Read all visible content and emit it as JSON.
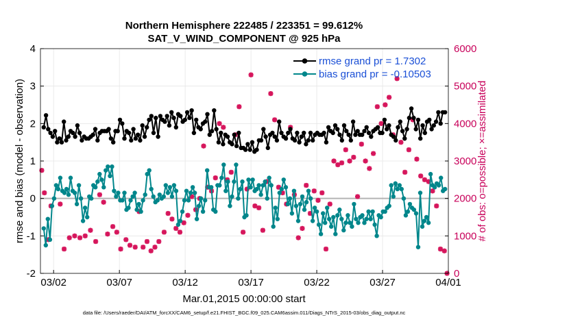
{
  "chart_data": {
    "type": "line",
    "title_line1": "Northern Hemisphere 222485 / 223351 = 99.612%",
    "title_line2": "SAT_V_WIND_COMPONENT @ 925 hPa",
    "ylabel_left": "rmse and bias (model - observation)",
    "ylabel_right": "# of obs: o=possible; ×=assimilated",
    "xlabel": "Mar.01,2015 00:00:00 start",
    "footer": "data file: /Users/raeder/DAI/ATM_forcXX/CAM6_setup/f.e21.FHIST_BGC.f09_025.CAM6assim.011/Diags_NTrS_2015-03/obs_diag_output.nc",
    "ylim_left": [
      -2,
      4
    ],
    "ylim_right": [
      0,
      6000
    ],
    "xlim_days": [
      0,
      31
    ],
    "y_ticks_left": [
      "-2",
      "-1",
      "0",
      "1",
      "2",
      "3",
      "4"
    ],
    "y_ticks_right": [
      "0",
      "1000",
      "2000",
      "3000",
      "4000",
      "5000",
      "6000"
    ],
    "x_tick_days": [
      1,
      6,
      11,
      16,
      21,
      26,
      31
    ],
    "x_tick_labels": [
      "03/02",
      "03/07",
      "03/12",
      "03/17",
      "03/22",
      "03/27",
      "04/01"
    ],
    "colors": {
      "rmse": "#000000",
      "bias": "#00868b",
      "obs": "#d6165c",
      "zero": "#b3b3b3",
      "legend_text": "#1a4fd6",
      "right_axis": "#c8005a"
    },
    "series": [
      {
        "name": "rmse grand pr = 1.7302",
        "values": [
          1.9,
          2.22,
          1.85,
          1.75,
          1.65,
          1.8,
          1.5,
          1.6,
          1.5,
          2.05,
          1.55,
          1.65,
          1.8,
          1.75,
          1.65,
          1.95,
          1.75,
          1.55,
          1.65,
          1.6,
          1.6,
          1.65,
          1.7,
          1.85,
          1.55,
          1.75,
          1.8,
          1.8,
          1.8,
          1.85,
          1.6,
          1.5,
          1.8,
          1.8,
          2.1,
          2.0,
          1.6,
          1.8,
          1.75,
          1.55,
          1.85,
          1.6,
          1.7,
          1.55,
          1.95,
          1.65,
          1.9,
          2.1,
          2.2,
          1.75,
          2.15,
          1.65,
          2.2,
          2.1,
          2.05,
          2.2,
          1.95,
          2.3,
          2.15,
          1.9,
          2.25,
          2.2,
          2.05,
          2.1,
          2.3,
          2.15,
          2.35,
          1.75,
          2.1,
          1.9,
          1.85,
          2.0,
          2.05,
          2.25,
          1.7,
          1.8,
          2.35,
          1.85,
          1.5,
          1.75,
          1.45,
          1.7,
          1.65,
          1.5,
          1.45,
          1.7,
          1.4,
          1.75,
          1.35,
          1.35,
          1.3,
          1.45,
          1.3,
          1.5,
          1.25,
          1.3,
          1.55,
          1.55,
          1.85,
          1.65,
          1.35,
          1.7,
          1.75,
          1.65,
          1.55,
          2.05,
          1.75,
          1.65,
          1.6,
          1.75,
          1.85,
          1.6,
          1.55,
          1.75,
          1.5,
          1.65,
          1.75,
          1.45,
          1.55,
          1.75,
          1.55,
          1.7,
          1.75,
          1.7,
          1.7,
          1.75,
          1.5,
          1.9,
          1.8,
          1.75,
          1.95,
          1.85,
          1.7,
          1.55,
          1.95,
          1.8,
          1.7,
          1.55,
          2.05,
          1.7,
          1.8,
          1.7,
          1.7,
          1.8,
          1.9,
          1.75,
          1.65,
          1.8,
          1.85,
          1.9,
          1.75,
          1.75,
          2.1,
          1.85,
          1.95,
          1.7,
          1.65,
          1.55,
          1.9,
          2.05,
          1.8,
          1.6,
          1.85,
          2.15,
          2.4,
          2.15,
          1.85,
          2.1,
          1.6,
          1.95,
          1.75,
          2.05,
          2.1,
          1.85,
          1.95,
          2.05,
          2.3,
          2.0,
          2.3,
          2.3
        ]
      },
      {
        "name": "bias grand pr = -0.10503",
        "values": [
          -0.8,
          -1.25,
          -0.55,
          -1.1,
          -0.2,
          0.0,
          0.35,
          0.25,
          0.55,
          0.2,
          0.15,
          0.25,
          0.1,
          0.55,
          0.2,
          0.15,
          -0.15,
          0.35,
          0.0,
          -0.6,
          -0.25,
          -0.5,
          0.05,
          0.0,
          0.35,
          0.3,
          0.45,
          0.65,
          0.5,
          0.3,
          0.75,
          0.85,
          0.6,
          0.85,
          0.2,
          0.05,
          0.15,
          -0.05,
          -0.05,
          0.15,
          -0.3,
          -0.25,
          -0.05,
          0.05,
          0.15,
          -0.3,
          -0.15,
          -0.35,
          -0.05,
          0.1,
          0.65,
          0.75,
          0.25,
          0.05,
          -0.1,
          -0.05,
          0.1,
          0.0,
          0.05,
          0.35,
          0.15,
          0.3,
          0.05,
          0.35,
          0.2,
          -0.7,
          -0.6,
          -0.35,
          -0.05,
          0.2,
          -0.05,
          0.15,
          0.3,
          0.15,
          -0.55,
          -0.2,
          0.0,
          -0.35,
          -0.05,
          0.75,
          0.3,
          0.3,
          -0.3,
          -0.35,
          0.35,
          0.35,
          0.55,
          0.9,
          0.2,
          0.45,
          -0.2,
          0.05,
          0.45,
          0.9,
          0.0,
          0.25,
          0.45,
          -0.5,
          -0.45,
          0.5,
          0.3,
          0.5,
          0.2,
          0.25,
          0.35,
          0.1,
          0.35,
          0.45,
          0.0,
          0.55,
          0.35,
          -0.75,
          -0.25,
          -0.55,
          0.15,
          0.25,
          0.5,
          0.3,
          -0.15,
          0.0,
          -0.4,
          0.2,
          -0.2,
          -0.6,
          -0.15,
          0.05,
          -0.3,
          -0.1,
          0.2,
          0.0,
          -0.6,
          -0.25,
          -0.35,
          -0.7,
          -0.95,
          -0.4,
          -0.65,
          -0.25,
          -0.55,
          -0.75,
          -0.5,
          -0.95,
          -0.45,
          -0.3,
          -0.55,
          -0.85,
          -0.65,
          -0.45,
          -0.65,
          -0.75,
          -0.15,
          -0.55,
          -0.65,
          -0.5,
          -0.45,
          -0.65,
          -0.55,
          -0.35,
          -0.55,
          -0.35,
          -0.7,
          -1.0,
          -0.45,
          -0.5,
          -0.35,
          -0.35,
          -0.25,
          -0.2,
          0.35,
          0.05,
          0.4,
          0.25,
          0.35,
          0.25,
          0.0,
          -0.45,
          -0.35,
          -0.15,
          -0.25,
          -0.3,
          -0.4,
          -1.3,
          0.15,
          -0.75,
          -0.6,
          -0.5,
          -0.65,
          0.65,
          0.35,
          0.3,
          0.4,
          0.35,
          0.55,
          0.2,
          0.25
        ]
      },
      {
        "name": "obs assimilated",
        "days": [
          0.1,
          0.3,
          0.6,
          0.8,
          1.5,
          1.8,
          2.2,
          2.6,
          3.0,
          3.4,
          3.8,
          4.2,
          4.5,
          4.8,
          5.1,
          5.5,
          5.8,
          6.1,
          6.5,
          6.8,
          7.2,
          7.5,
          7.8,
          8.1,
          8.4,
          8.7,
          9.0,
          9.4,
          9.7,
          10.0,
          10.3,
          10.6,
          10.9,
          11.2,
          11.5,
          11.8,
          12.1,
          12.4,
          12.7,
          13.0,
          13.3,
          13.6,
          13.9,
          14.2,
          14.5,
          14.8,
          15.1,
          15.4,
          15.7,
          16.0,
          16.3,
          16.6,
          16.9,
          17.2,
          17.5,
          17.8,
          18.1,
          18.4,
          18.7,
          19.0,
          19.3,
          19.6,
          19.9,
          20.2,
          20.5,
          20.8,
          21.1,
          21.4,
          21.7,
          22.0,
          22.3,
          22.6,
          22.9,
          23.2,
          23.5,
          23.8,
          24.1,
          24.4,
          24.7,
          25.0,
          25.3,
          25.6,
          25.9,
          26.2,
          26.5,
          26.8,
          27.1,
          27.4,
          27.7,
          28.0,
          28.3,
          28.6,
          28.9,
          29.2,
          29.5,
          29.8,
          30.1,
          30.4,
          30.7,
          30.9
        ],
        "values": [
          2750,
          2150,
          900,
          1800,
          1850,
          650,
          950,
          1000,
          950,
          1000,
          1150,
          850,
          2100,
          1900,
          1050,
          1250,
          1100,
          650,
          900,
          750,
          700,
          1650,
          700,
          850,
          600,
          700,
          850,
          1100,
          1600,
          1450,
          1200,
          1100,
          1350,
          1550,
          2050,
          1700,
          2000,
          3400,
          2300,
          2200,
          2550,
          4000,
          3900,
          2500,
          2700,
          3700,
          4450,
          1100,
          2250,
          5300,
          1800,
          1750,
          1150,
          2450,
          4800,
          4100,
          2300,
          2150,
          1850,
          3900,
          2100,
          950,
          1200,
          2350,
          1600,
          2200,
          1950,
          2150,
          650,
          1850,
          3000,
          2900,
          2950,
          3300,
          3000,
          3100,
          2050,
          3450,
          3000,
          2800,
          3200,
          4450,
          4000,
          4500,
          4700,
          3700,
          5200,
          3500,
          2700,
          3300,
          4100,
          3050,
          2600,
          2500,
          2450,
          2200,
          1800,
          650,
          600,
          0
        ]
      }
    ]
  }
}
